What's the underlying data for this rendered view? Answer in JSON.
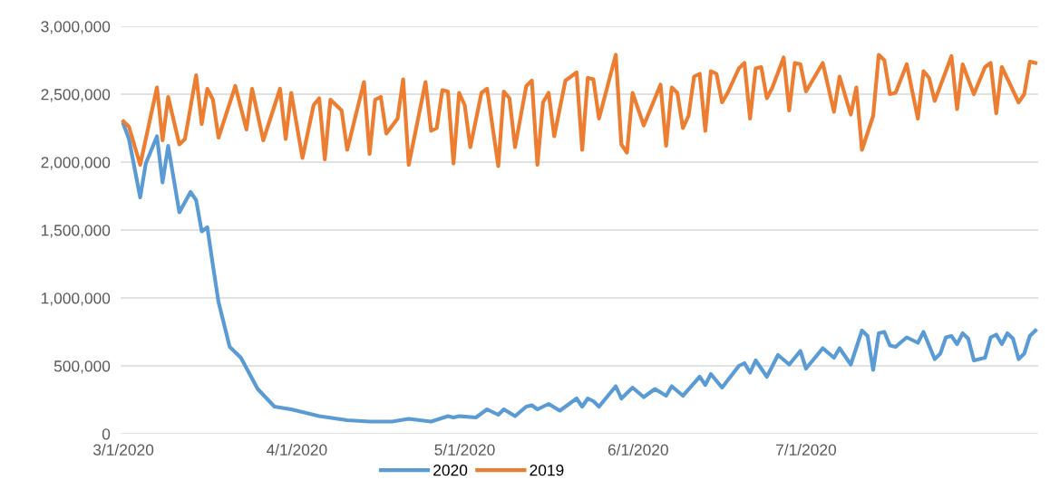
{
  "chart_data": {
    "type": "line",
    "xlim": [
      "2020-02-29T12:00",
      "2020-08-11T12:00"
    ],
    "ylim": [
      0,
      3000000
    ],
    "xticks": [
      {
        "value": "2020-03-01",
        "label": "3/1/2020"
      },
      {
        "value": "2020-04-01",
        "label": "4/1/2020"
      },
      {
        "value": "2020-05-01",
        "label": "5/1/2020"
      },
      {
        "value": "2020-06-01",
        "label": "6/1/2020"
      },
      {
        "value": "2020-07-01",
        "label": "7/1/2020"
      }
    ],
    "yticks": [
      0,
      {
        "value": 500000,
        "label": "500,000"
      },
      {
        "value": 1000000,
        "label": "1,000,000"
      },
      {
        "value": 1500000,
        "label": "1,500,000"
      },
      {
        "value": 2000000,
        "label": "2,000,000"
      },
      {
        "value": 2500000,
        "label": "2,500,000"
      },
      {
        "value": 3000000,
        "label": "3,000,000"
      }
    ],
    "grid": "y",
    "legend": "bottom",
    "line_style": "solid",
    "marker": "none",
    "series": [
      {
        "name": "2020",
        "color": "#5b9bd5",
        "x": [
          "2020-03-01",
          "2020-03-02",
          "2020-03-04",
          "2020-03-05",
          "2020-03-07",
          "2020-03-08",
          "2020-03-09",
          "2020-03-11",
          "2020-03-13",
          "2020-03-14",
          "2020-03-15",
          "2020-03-16",
          "2020-03-17",
          "2020-03-18",
          "2020-03-20",
          "2020-03-22",
          "2020-03-25",
          "2020-03-28",
          "2020-03-31",
          "2020-04-05",
          "2020-04-10",
          "2020-04-14",
          "2020-04-18",
          "2020-04-21",
          "2020-04-25",
          "2020-04-28",
          "2020-04-29",
          "2020-04-30",
          "2020-05-03",
          "2020-05-05",
          "2020-05-07",
          "2020-05-08",
          "2020-05-10",
          "2020-05-12",
          "2020-05-13",
          "2020-05-14",
          "2020-05-16",
          "2020-05-18",
          "2020-05-21",
          "2020-05-22",
          "2020-05-23",
          "2020-05-24",
          "2020-05-25",
          "2020-05-28",
          "2020-05-29",
          "2020-05-31",
          "2020-06-02",
          "2020-06-04",
          "2020-06-06",
          "2020-06-07",
          "2020-06-09",
          "2020-06-12",
          "2020-06-13",
          "2020-06-14",
          "2020-06-16",
          "2020-06-19",
          "2020-06-20",
          "2020-06-21",
          "2020-06-22",
          "2020-06-24",
          "2020-06-26",
          "2020-06-28",
          "2020-06-30",
          "2020-07-01",
          "2020-07-04",
          "2020-07-06",
          "2020-07-07",
          "2020-07-09",
          "2020-07-11",
          "2020-07-12",
          "2020-07-13",
          "2020-07-14",
          "2020-07-15",
          "2020-07-16",
          "2020-07-17",
          "2020-07-19",
          "2020-07-21",
          "2020-07-22",
          "2020-07-24",
          "2020-07-25",
          "2020-07-26",
          "2020-07-27",
          "2020-07-28",
          "2020-07-29",
          "2020-07-30",
          "2020-07-31",
          "2020-08-02",
          "2020-08-03",
          "2020-08-04",
          "2020-08-05",
          "2020-08-06",
          "2020-08-07",
          "2020-08-08",
          "2020-08-09",
          "2020-08-10",
          "2020-08-11"
        ],
        "values": [
          2280000,
          2170000,
          1740000,
          1990000,
          2190000,
          1850000,
          2120000,
          1630000,
          1780000,
          1720000,
          1490000,
          1520000,
          1240000,
          970000,
          640000,
          560000,
          330000,
          200000,
          180000,
          130000,
          100000,
          90000,
          90000,
          110000,
          90000,
          130000,
          120000,
          130000,
          120000,
          180000,
          140000,
          180000,
          130000,
          200000,
          210000,
          180000,
          220000,
          170000,
          260000,
          200000,
          260000,
          240000,
          200000,
          350000,
          260000,
          340000,
          270000,
          330000,
          280000,
          350000,
          280000,
          420000,
          360000,
          440000,
          340000,
          500000,
          520000,
          450000,
          540000,
          420000,
          580000,
          510000,
          610000,
          480000,
          630000,
          560000,
          630000,
          510000,
          760000,
          720000,
          470000,
          740000,
          750000,
          650000,
          640000,
          710000,
          670000,
          750000,
          550000,
          590000,
          710000,
          720000,
          660000,
          740000,
          700000,
          540000,
          560000,
          710000,
          730000,
          660000,
          740000,
          700000,
          550000,
          590000,
          720000,
          760000
        ]
      },
      {
        "name": "2019",
        "color": "#ed7d31",
        "x": [
          "2020-03-01",
          "2020-03-02",
          "2020-03-04",
          "2020-03-07",
          "2020-03-08",
          "2020-03-09",
          "2020-03-11",
          "2020-03-12",
          "2020-03-14",
          "2020-03-15",
          "2020-03-16",
          "2020-03-17",
          "2020-03-18",
          "2020-03-21",
          "2020-03-23",
          "2020-03-24",
          "2020-03-26",
          "2020-03-29",
          "2020-03-30",
          "2020-03-31",
          "2020-04-02",
          "2020-04-04",
          "2020-04-05",
          "2020-04-06",
          "2020-04-07",
          "2020-04-09",
          "2020-04-10",
          "2020-04-13",
          "2020-04-14",
          "2020-04-15",
          "2020-04-16",
          "2020-04-17",
          "2020-04-19",
          "2020-04-20",
          "2020-04-21",
          "2020-04-24",
          "2020-04-25",
          "2020-04-26",
          "2020-04-27",
          "2020-04-28",
          "2020-04-29",
          "2020-04-30",
          "2020-05-01",
          "2020-05-02",
          "2020-05-04",
          "2020-05-05",
          "2020-05-07",
          "2020-05-08",
          "2020-05-09",
          "2020-05-10",
          "2020-05-12",
          "2020-05-13",
          "2020-05-14",
          "2020-05-15",
          "2020-05-16",
          "2020-05-17",
          "2020-05-19",
          "2020-05-21",
          "2020-05-22",
          "2020-05-23",
          "2020-05-24",
          "2020-05-25",
          "2020-05-28",
          "2020-05-29",
          "2020-05-30",
          "2020-05-31",
          "2020-06-02",
          "2020-06-05",
          "2020-06-06",
          "2020-06-07",
          "2020-06-08",
          "2020-06-09",
          "2020-06-10",
          "2020-06-11",
          "2020-06-12",
          "2020-06-13",
          "2020-06-14",
          "2020-06-15",
          "2020-06-16",
          "2020-06-17",
          "2020-06-19",
          "2020-06-20",
          "2020-06-21",
          "2020-06-22",
          "2020-06-23",
          "2020-06-24",
          "2020-06-25",
          "2020-06-27",
          "2020-06-28",
          "2020-06-29",
          "2020-06-30",
          "2020-07-01",
          "2020-07-04",
          "2020-07-06",
          "2020-07-07",
          "2020-07-09",
          "2020-07-10",
          "2020-07-11",
          "2020-07-13",
          "2020-07-14",
          "2020-07-15",
          "2020-07-16",
          "2020-07-17",
          "2020-07-19",
          "2020-07-21",
          "2020-07-22",
          "2020-07-23",
          "2020-07-24",
          "2020-07-27",
          "2020-07-28",
          "2020-07-29",
          "2020-07-31",
          "2020-08-02",
          "2020-08-03",
          "2020-08-04",
          "2020-08-05",
          "2020-08-08",
          "2020-08-09",
          "2020-08-10",
          "2020-08-11"
        ],
        "values": [
          2300000,
          2260000,
          1980000,
          2550000,
          2160000,
          2480000,
          2130000,
          2170000,
          2640000,
          2280000,
          2540000,
          2460000,
          2180000,
          2560000,
          2240000,
          2540000,
          2160000,
          2540000,
          2170000,
          2510000,
          2030000,
          2420000,
          2470000,
          2020000,
          2460000,
          2380000,
          2090000,
          2590000,
          2060000,
          2460000,
          2480000,
          2210000,
          2320000,
          2610000,
          1980000,
          2590000,
          2230000,
          2250000,
          2530000,
          2520000,
          1990000,
          2510000,
          2420000,
          2110000,
          2510000,
          2540000,
          1970000,
          2520000,
          2470000,
          2110000,
          2560000,
          2600000,
          1980000,
          2440000,
          2510000,
          2190000,
          2600000,
          2660000,
          2090000,
          2620000,
          2610000,
          2320000,
          2790000,
          2130000,
          2070000,
          2510000,
          2270000,
          2570000,
          2120000,
          2550000,
          2510000,
          2250000,
          2340000,
          2630000,
          2650000,
          2230000,
          2670000,
          2650000,
          2440000,
          2510000,
          2690000,
          2730000,
          2320000,
          2690000,
          2700000,
          2470000,
          2550000,
          2770000,
          2380000,
          2730000,
          2720000,
          2520000,
          2730000,
          2370000,
          2630000,
          2350000,
          2550000,
          2090000,
          2340000,
          2790000,
          2750000,
          2500000,
          2510000,
          2720000,
          2320000,
          2670000,
          2620000,
          2450000,
          2780000,
          2390000,
          2720000,
          2500000,
          2700000,
          2730000,
          2360000,
          2700000,
          2440000,
          2500000,
          2740000,
          2730000
        ]
      }
    ]
  }
}
